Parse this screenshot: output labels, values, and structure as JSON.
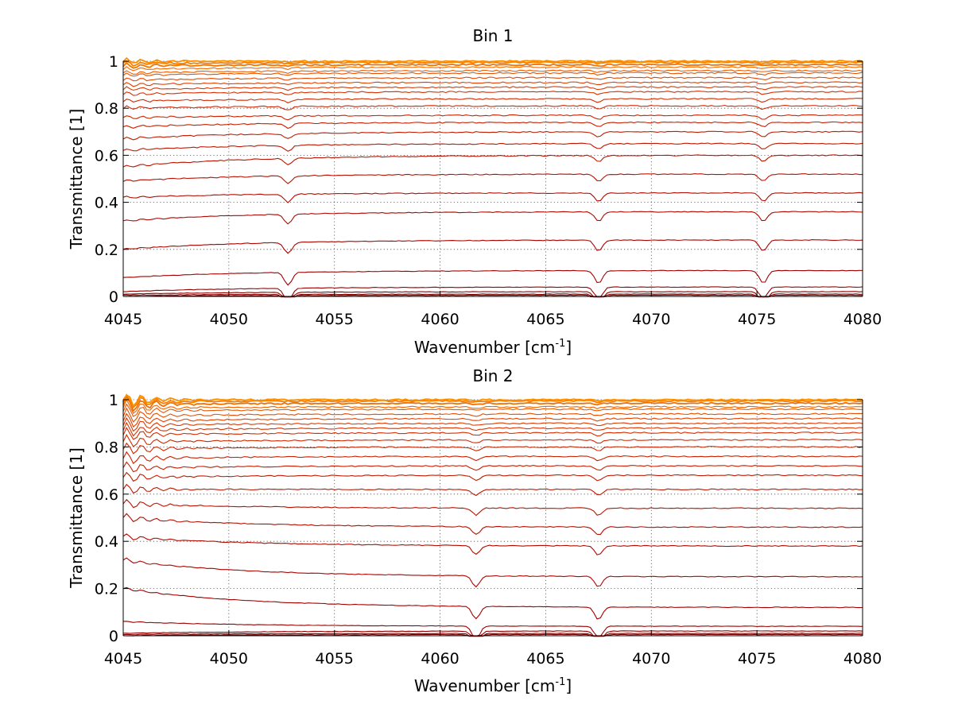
{
  "chart_data": [
    {
      "type": "line",
      "title": "Bin 1",
      "xlabel": "Wavenumber [cm",
      "xlabel_sup": "-1",
      "xlabel_end": "]",
      "ylabel": "Transmittance [1]",
      "xlim": [
        4045,
        4080
      ],
      "ylim": [
        0,
        1.0
      ],
      "xticks": [
        4045,
        4050,
        4055,
        4060,
        4065,
        4070,
        4075,
        4080
      ],
      "xtick_labels": [
        "4045",
        "4050",
        "4055",
        "4060",
        "4065",
        "4070",
        "4075",
        "4080"
      ],
      "yticks": [
        0,
        0.2,
        0.4,
        0.6,
        0.8,
        1
      ],
      "ytick_labels": [
        "0",
        "0.2",
        "0.4",
        "0.6",
        "0.8",
        "1"
      ],
      "grid": true,
      "series_start": [
        0.0,
        0.005,
        0.01,
        0.02,
        0.08,
        0.2,
        0.32,
        0.42,
        0.49,
        0.55,
        0.62,
        0.67,
        0.72,
        0.76,
        0.8,
        0.83,
        0.86,
        0.88,
        0.9,
        0.92,
        0.94,
        0.95,
        0.965,
        0.98,
        0.99,
        1.0
      ],
      "series_end": [
        0.005,
        0.01,
        0.02,
        0.04,
        0.11,
        0.24,
        0.36,
        0.44,
        0.52,
        0.6,
        0.65,
        0.7,
        0.74,
        0.77,
        0.81,
        0.84,
        0.87,
        0.89,
        0.91,
        0.93,
        0.95,
        0.96,
        0.975,
        0.985,
        0.995,
        1.0
      ],
      "dips": [
        4052.8,
        4067.5,
        4075.3
      ],
      "colors": [
        "#7a0000",
        "#850000",
        "#900000",
        "#9a0000",
        "#a20000",
        "#aa0500",
        "#b00800",
        "#b40c00",
        "#b81000",
        "#bc1400",
        "#c01800",
        "#c41c00",
        "#c82000",
        "#cc2400",
        "#d02800",
        "#d42c00",
        "#d83000",
        "#dc3800",
        "#e04000",
        "#e44800",
        "#e85200",
        "#ec5c00",
        "#f06800",
        "#f47400",
        "#f88000",
        "#fa9000"
      ]
    },
    {
      "type": "line",
      "title": "Bin 2",
      "xlabel": "Wavenumber [cm",
      "xlabel_sup": "-1",
      "xlabel_end": "]",
      "ylabel": "Transmittance [1]",
      "xlim": [
        4045,
        4080
      ],
      "ylim": [
        0,
        1.0
      ],
      "xticks": [
        4045,
        4050,
        4055,
        4060,
        4065,
        4070,
        4075,
        4080
      ],
      "xtick_labels": [
        "4045",
        "4050",
        "4055",
        "4060",
        "4065",
        "4070",
        "4075",
        "4080"
      ],
      "yticks": [
        0,
        0.2,
        0.4,
        0.6,
        0.8,
        1
      ],
      "ytick_labels": [
        "0",
        "0.2",
        "0.4",
        "0.6",
        "0.8",
        "1"
      ],
      "grid": true,
      "series_start": [
        0.0,
        0.005,
        0.01,
        0.06,
        0.2,
        0.32,
        0.42,
        0.5,
        0.56,
        0.62,
        0.67,
        0.71,
        0.75,
        0.79,
        0.82,
        0.85,
        0.87,
        0.89,
        0.91,
        0.93,
        0.95,
        0.965,
        0.98,
        0.99,
        1.0
      ],
      "series_end": [
        0.005,
        0.01,
        0.02,
        0.04,
        0.12,
        0.25,
        0.38,
        0.46,
        0.54,
        0.62,
        0.68,
        0.72,
        0.76,
        0.8,
        0.83,
        0.86,
        0.88,
        0.9,
        0.92,
        0.94,
        0.96,
        0.97,
        0.985,
        0.995,
        1.0
      ],
      "dips": [
        4061.7,
        4067.5
      ],
      "colors": [
        "#7a0000",
        "#850000",
        "#900000",
        "#9a0000",
        "#a40000",
        "#ac0600",
        "#b20a00",
        "#b60e00",
        "#ba1200",
        "#be1600",
        "#c21a00",
        "#c61e00",
        "#ca2200",
        "#ce2600",
        "#d22a00",
        "#d62e00",
        "#da3400",
        "#de3c00",
        "#e24400",
        "#e64e00",
        "#ea5800",
        "#ee6400",
        "#f27000",
        "#f67e00",
        "#fa9000"
      ]
    }
  ]
}
